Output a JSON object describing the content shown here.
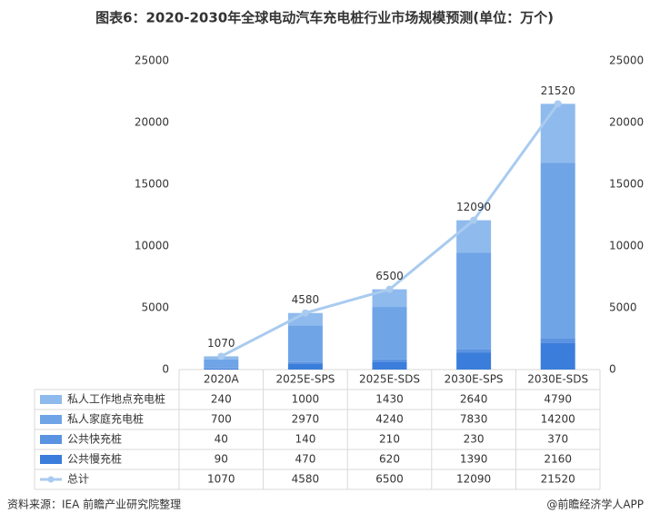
{
  "chart_data": {
    "type": "bar",
    "stacked": true,
    "title": "图表6：2020-2030年全球电动汽车充电桩行业市场规模预测(单位：万个)",
    "categories": [
      "2020A",
      "2025E-SPS",
      "2025E-SDS",
      "2030E-SPS",
      "2030E-SDS"
    ],
    "series": [
      {
        "name": "私人工作地点充电桩",
        "color": "#8fbaed",
        "values": [
          240,
          1000,
          1430,
          2640,
          4790
        ]
      },
      {
        "name": "私人家庭充电桩",
        "color": "#6fa4e7",
        "values": [
          700,
          2970,
          4240,
          7830,
          14200
        ]
      },
      {
        "name": "公共快充桩",
        "color": "#5a93e1",
        "values": [
          40,
          140,
          210,
          230,
          370
        ]
      },
      {
        "name": "公共慢充桩",
        "color": "#3b7ddb",
        "values": [
          90,
          470,
          620,
          1390,
          2160
        ]
      },
      {
        "name": "总计",
        "color": "#a9cbef",
        "type": "line",
        "axis": "y2",
        "values": [
          1070,
          4580,
          6500,
          12090,
          21520
        ]
      }
    ],
    "ylim": [
      0,
      25000
    ],
    "yticks": [
      0,
      5000,
      10000,
      15000,
      20000,
      25000
    ],
    "y2lim": [
      0,
      25000
    ],
    "y2ticks": [
      0,
      5000,
      10000,
      15000,
      20000,
      25000
    ],
    "source": "资料来源：IEA 前瞻产业研究院整理",
    "credit": "@前瞻经济学人APP"
  }
}
